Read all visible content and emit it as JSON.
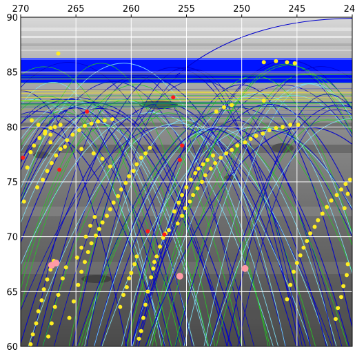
{
  "chart_data": {
    "type": "scatter",
    "title": "",
    "xlabel": "",
    "ylabel": "",
    "xlim": [
      270,
      240
    ],
    "ylim": [
      60,
      90
    ],
    "x_ticks": [
      270,
      265,
      260,
      255,
      250,
      245,
      240
    ],
    "y_ticks": [
      60,
      65,
      70,
      75,
      80,
      85,
      90
    ],
    "x_tick_labels": [
      "270",
      "265",
      "260",
      "255",
      "250",
      "245",
      "240"
    ],
    "y_tick_labels": [
      "60",
      "65",
      "70",
      "75",
      "80",
      "85",
      "90"
    ],
    "grid": true,
    "background": "grayscale polar terrain image with blue polar cap above latitude 85",
    "colors": {
      "blue_track": "#0000cc",
      "cyan_track": "#7fe8ff",
      "green_track": "#22cc22",
      "yellow_point": "#ffee22",
      "red_point": "#ff1a1a",
      "pink_point": "#ff9aa6",
      "grid": "#ffffff",
      "polar_cap": "#0014ff"
    },
    "tracks": {
      "description_colors": [
        "blue",
        "cyan",
        "green",
        "yellow"
      ],
      "apex_latitude_range": [
        80,
        87
      ]
    },
    "series": [
      {
        "color": "yellow",
        "points": [
          [
            269.7,
            73.2
          ],
          [
            269.4,
            76.3
          ],
          [
            269.1,
            77.7
          ],
          [
            268.8,
            78.3
          ],
          [
            268.3,
            79.0
          ],
          [
            267.8,
            79.6
          ],
          [
            267.3,
            79.9
          ],
          [
            266.9,
            80.0
          ],
          [
            266.4,
            80.2
          ],
          [
            268.5,
            74.5
          ],
          [
            268.0,
            75.2
          ],
          [
            267.6,
            76.0
          ],
          [
            267.2,
            76.7
          ],
          [
            266.8,
            77.4
          ],
          [
            266.4,
            78.0
          ],
          [
            265.8,
            78.8
          ],
          [
            265.3,
            79.3
          ],
          [
            264.7,
            79.7
          ],
          [
            264.2,
            80.1
          ],
          [
            263.6,
            80.3
          ],
          [
            263.0,
            80.5
          ],
          [
            262.4,
            80.6
          ],
          [
            261.7,
            80.7
          ],
          [
            267.3,
            79.3
          ],
          [
            266.0,
            78.2
          ],
          [
            264.5,
            78.0
          ],
          [
            263.4,
            77.6
          ],
          [
            262.6,
            77.1
          ],
          [
            261.9,
            76.4
          ],
          [
            269.0,
            80.6
          ],
          [
            268.4,
            80.2
          ],
          [
            267.8,
            79.4
          ],
          [
            267.3,
            78.6
          ],
          [
            266.6,
            86.7
          ]
        ]
      },
      {
        "color": "yellow",
        "points": [
          [
            269.1,
            60.2
          ],
          [
            268.9,
            61.1
          ],
          [
            268.6,
            62.1
          ],
          [
            268.4,
            63.2
          ],
          [
            268.1,
            64.2
          ],
          [
            267.9,
            65.2
          ],
          [
            267.6,
            66.1
          ],
          [
            267.3,
            67.0
          ],
          [
            267.0,
            67.8
          ],
          [
            267.5,
            60.9
          ],
          [
            267.2,
            62.1
          ],
          [
            266.9,
            63.6
          ],
          [
            266.6,
            64.7
          ],
          [
            266.2,
            66.2
          ],
          [
            265.9,
            67.2
          ],
          [
            265.6,
            62.6
          ],
          [
            265.2,
            64.1
          ],
          [
            264.8,
            65.6
          ],
          [
            264.5,
            66.8
          ],
          [
            264.2,
            67.7
          ],
          [
            263.9,
            68.6
          ],
          [
            263.6,
            69.4
          ],
          [
            263.2,
            70.1
          ],
          [
            262.9,
            70.7
          ],
          [
            262.6,
            71.3
          ],
          [
            262.2,
            71.9
          ],
          [
            261.9,
            72.5
          ],
          [
            261.6,
            73.1
          ],
          [
            261.2,
            73.7
          ],
          [
            260.9,
            74.3
          ],
          [
            260.5,
            74.9
          ],
          [
            260.2,
            75.5
          ],
          [
            259.8,
            76.0
          ],
          [
            259.5,
            76.6
          ],
          [
            259.1,
            77.2
          ],
          [
            258.7,
            77.6
          ],
          [
            258.3,
            78.1
          ],
          [
            264.9,
            68.1
          ],
          [
            264.5,
            69.0
          ],
          [
            264.1,
            70.0
          ],
          [
            263.7,
            71.0
          ],
          [
            263.3,
            71.8
          ]
        ]
      },
      {
        "color": "yellow",
        "points": [
          [
            259.3,
            60.7
          ],
          [
            259.1,
            61.4
          ],
          [
            258.9,
            62.6
          ],
          [
            258.7,
            63.8
          ],
          [
            258.5,
            65.0
          ],
          [
            258.2,
            66.3
          ],
          [
            258.0,
            67.1
          ],
          [
            257.9,
            67.7
          ],
          [
            257.7,
            68.2
          ],
          [
            257.4,
            69.1
          ],
          [
            257.1,
            69.9
          ],
          [
            256.9,
            70.3
          ],
          [
            256.6,
            70.6
          ],
          [
            261.0,
            63.6
          ],
          [
            260.7,
            64.7
          ],
          [
            260.4,
            65.4
          ],
          [
            260.2,
            66.2
          ],
          [
            260.0,
            66.7
          ],
          [
            259.7,
            67.5
          ],
          [
            259.5,
            68.2
          ],
          [
            255.8,
            71.2
          ],
          [
            255.4,
            71.9
          ],
          [
            255.1,
            72.6
          ],
          [
            254.7,
            73.2
          ],
          [
            254.4,
            73.8
          ],
          [
            254.0,
            74.4
          ],
          [
            253.6,
            75.0
          ],
          [
            253.3,
            75.6
          ],
          [
            252.8,
            76.2
          ],
          [
            252.4,
            76.7
          ],
          [
            251.9,
            77.2
          ],
          [
            251.4,
            77.6
          ],
          [
            250.9,
            77.9
          ],
          [
            250.4,
            78.3
          ],
          [
            249.7,
            78.6
          ],
          [
            249.2,
            78.9
          ],
          [
            248.7,
            79.2
          ],
          [
            248.1,
            79.4
          ],
          [
            247.5,
            79.7
          ],
          [
            246.9,
            79.9
          ],
          [
            246.3,
            80.0
          ],
          [
            245.6,
            80.2
          ],
          [
            244.9,
            80.2
          ],
          [
            256.1,
            72.3
          ],
          [
            255.7,
            73.1
          ],
          [
            255.4,
            73.8
          ],
          [
            255.0,
            74.5
          ],
          [
            254.6,
            75.2
          ],
          [
            254.2,
            75.8
          ],
          [
            253.9,
            76.2
          ],
          [
            253.5,
            76.6
          ],
          [
            253.1,
            77.0
          ],
          [
            252.6,
            77.4
          ]
        ]
      },
      {
        "color": "yellow",
        "points": [
          [
            245.9,
            64.3
          ],
          [
            245.6,
            65.6
          ],
          [
            245.3,
            66.8
          ],
          [
            245.0,
            67.6
          ],
          [
            244.7,
            68.3
          ],
          [
            244.4,
            69.0
          ],
          [
            244.1,
            69.6
          ],
          [
            243.8,
            70.3
          ],
          [
            243.4,
            70.9
          ],
          [
            243.1,
            71.5
          ],
          [
            242.7,
            72.1
          ],
          [
            242.3,
            72.7
          ],
          [
            241.9,
            73.3
          ],
          [
            241.4,
            73.8
          ],
          [
            241.0,
            74.3
          ],
          [
            240.6,
            74.8
          ],
          [
            240.2,
            75.2
          ],
          [
            241.5,
            62.5
          ],
          [
            241.3,
            63.5
          ],
          [
            241.0,
            64.5
          ],
          [
            240.8,
            65.5
          ],
          [
            240.5,
            66.5
          ],
          [
            240.4,
            67.5
          ],
          [
            240.4,
            73.9
          ],
          [
            240.7,
            72.6
          ],
          [
            248.0,
            85.9
          ],
          [
            246.9,
            86.0
          ],
          [
            245.9,
            85.9
          ],
          [
            245.2,
            85.8
          ],
          [
            252.3,
            81.4
          ],
          [
            251.6,
            81.8
          ],
          [
            250.9,
            82.0
          ],
          [
            248.0,
            82.4
          ]
        ]
      },
      {
        "color": "red",
        "points": [
          [
            269.8,
            77.2
          ],
          [
            266.5,
            76.1
          ],
          [
            264.0,
            81.4
          ],
          [
            255.6,
            77.0
          ],
          [
            255.4,
            78.3
          ],
          [
            258.5,
            70.5
          ],
          [
            257.0,
            70.2
          ],
          [
            256.2,
            82.7
          ]
        ]
      },
      {
        "color": "pink",
        "points": [
          [
            267.2,
            67.4
          ],
          [
            266.8,
            67.6
          ],
          [
            255.6,
            66.4
          ],
          [
            249.7,
            67.1
          ]
        ]
      }
    ]
  }
}
